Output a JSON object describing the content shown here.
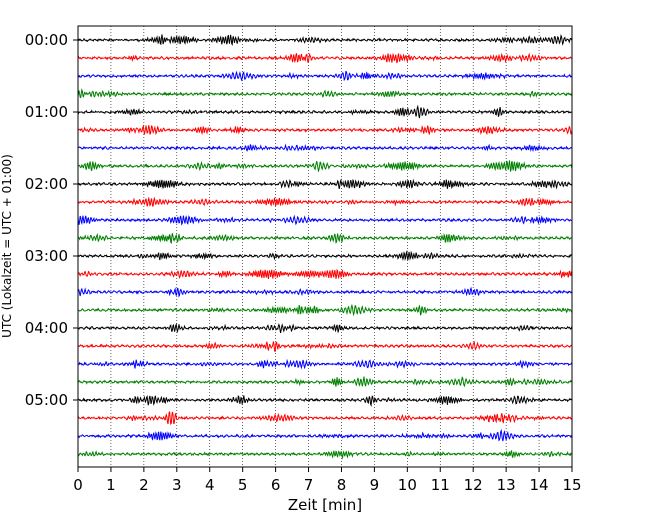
{
  "chart_data": {
    "type": "line",
    "title": "",
    "xlabel": "Zeit  [min]",
    "ylabel": "UTC (Lokalzeit = UTC + 01:00)",
    "xlim": [
      0,
      15
    ],
    "x_ticks": [
      "0",
      "1",
      "2",
      "3",
      "4",
      "5",
      "6",
      "7",
      "8",
      "9",
      "10",
      "11",
      "12",
      "13",
      "14",
      "15"
    ],
    "y_ticks": [
      "00:00",
      "01:00",
      "02:00",
      "03:00",
      "04:00",
      "05:00"
    ],
    "grid": "vertical dotted",
    "minutes_per_trace": 15,
    "trace_count": 24,
    "colors": [
      "#000000",
      "#ff0000",
      "#0000ff",
      "#008000"
    ],
    "traces": [
      {
        "start": "00:00",
        "color": "#000000"
      },
      {
        "start": "00:15",
        "color": "#ff0000"
      },
      {
        "start": "00:30",
        "color": "#0000ff"
      },
      {
        "start": "00:45",
        "color": "#008000"
      },
      {
        "start": "01:00",
        "color": "#000000"
      },
      {
        "start": "01:15",
        "color": "#ff0000"
      },
      {
        "start": "01:30",
        "color": "#0000ff"
      },
      {
        "start": "01:45",
        "color": "#008000"
      },
      {
        "start": "02:00",
        "color": "#000000"
      },
      {
        "start": "02:15",
        "color": "#ff0000"
      },
      {
        "start": "02:30",
        "color": "#0000ff"
      },
      {
        "start": "02:45",
        "color": "#008000"
      },
      {
        "start": "03:00",
        "color": "#000000"
      },
      {
        "start": "03:15",
        "color": "#ff0000"
      },
      {
        "start": "03:30",
        "color": "#0000ff"
      },
      {
        "start": "03:45",
        "color": "#008000"
      },
      {
        "start": "04:00",
        "color": "#000000"
      },
      {
        "start": "04:15",
        "color": "#ff0000"
      },
      {
        "start": "04:30",
        "color": "#0000ff"
      },
      {
        "start": "04:45",
        "color": "#008000"
      },
      {
        "start": "05:00",
        "color": "#000000"
      },
      {
        "start": "05:15",
        "color": "#ff0000"
      },
      {
        "start": "05:30",
        "color": "#0000ff"
      },
      {
        "start": "05:45",
        "color": "#008000"
      }
    ]
  }
}
